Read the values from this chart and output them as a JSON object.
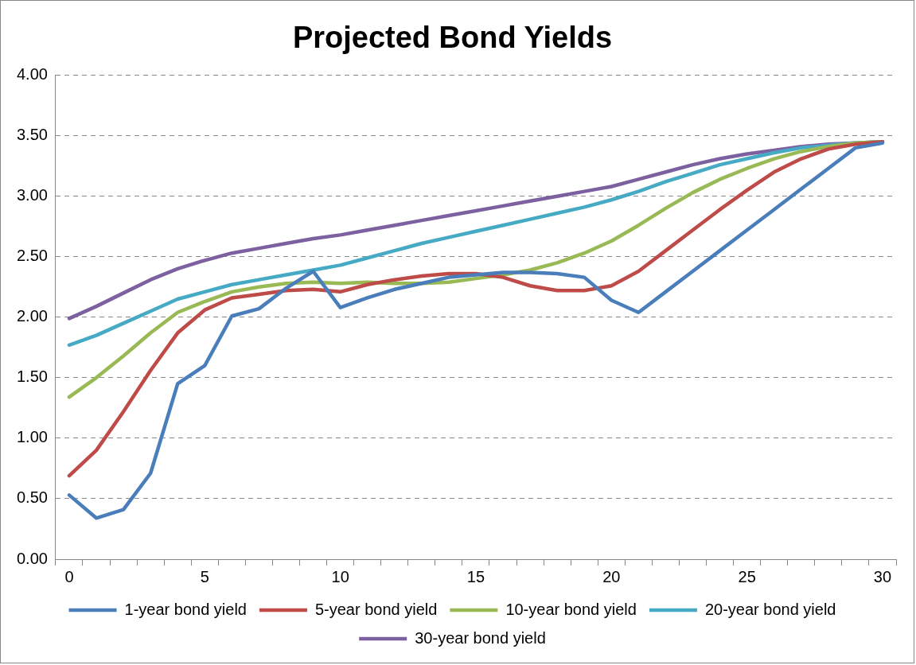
{
  "chart_data": {
    "type": "line",
    "title": "Projected Bond Yields",
    "categories": [
      "0",
      null,
      null,
      null,
      null,
      "5",
      null,
      null,
      null,
      null,
      "10",
      null,
      null,
      null,
      null,
      "15",
      null,
      null,
      null,
      null,
      "20",
      null,
      null,
      null,
      null,
      "25",
      null,
      null,
      null,
      null,
      "30"
    ],
    "series": [
      {
        "name": "1-year bond yield",
        "color": "#4a7ebb",
        "values": [
          0.53,
          0.34,
          0.41,
          0.71,
          1.45,
          1.6,
          2.01,
          2.07,
          2.24,
          2.38,
          2.08,
          2.16,
          2.23,
          2.28,
          2.33,
          2.35,
          2.37,
          2.37,
          2.36,
          2.33,
          2.14,
          2.04,
          2.21,
          2.38,
          2.55,
          2.72,
          2.89,
          3.06,
          3.23,
          3.4,
          3.44
        ]
      },
      {
        "name": "5-year bond yield",
        "color": "#be4b48",
        "values": [
          0.69,
          0.9,
          1.22,
          1.56,
          1.87,
          2.06,
          2.16,
          2.19,
          2.22,
          2.23,
          2.21,
          2.27,
          2.31,
          2.34,
          2.36,
          2.36,
          2.33,
          2.26,
          2.22,
          2.22,
          2.26,
          2.38,
          2.55,
          2.72,
          2.89,
          3.05,
          3.2,
          3.31,
          3.39,
          3.43,
          3.45
        ]
      },
      {
        "name": "10-year bond yield",
        "color": "#98b954",
        "values": [
          1.34,
          1.5,
          1.68,
          1.87,
          2.04,
          2.13,
          2.21,
          2.25,
          2.28,
          2.29,
          2.28,
          2.29,
          2.28,
          2.28,
          2.29,
          2.32,
          2.35,
          2.39,
          2.45,
          2.53,
          2.63,
          2.76,
          2.9,
          3.03,
          3.14,
          3.23,
          3.31,
          3.37,
          3.41,
          3.44,
          3.45
        ]
      },
      {
        "name": "20-year bond yield",
        "color": "#46aac5",
        "values": [
          1.77,
          1.85,
          1.95,
          2.05,
          2.15,
          2.21,
          2.27,
          2.31,
          2.35,
          2.39,
          2.43,
          2.49,
          2.55,
          2.61,
          2.66,
          2.71,
          2.76,
          2.81,
          2.86,
          2.91,
          2.97,
          3.04,
          3.12,
          3.19,
          3.26,
          3.31,
          3.36,
          3.4,
          3.42,
          3.44,
          3.45
        ]
      },
      {
        "name": "30-year bond yield",
        "color": "#7d60a0",
        "values": [
          1.99,
          2.09,
          2.2,
          2.31,
          2.4,
          2.47,
          2.53,
          2.57,
          2.61,
          2.65,
          2.68,
          2.72,
          2.76,
          2.8,
          2.84,
          2.88,
          2.92,
          2.96,
          3.0,
          3.04,
          3.08,
          3.14,
          3.2,
          3.26,
          3.31,
          3.35,
          3.38,
          3.41,
          3.43,
          3.44,
          3.45
        ]
      }
    ],
    "ylim": [
      0,
      4
    ],
    "yticks": [
      {
        "value": 0,
        "label": "0.00"
      },
      {
        "value": 0.5,
        "label": "0.50"
      },
      {
        "value": 1,
        "label": "1.00"
      },
      {
        "value": 1.5,
        "label": "1.50"
      },
      {
        "value": 2,
        "label": "2.00"
      },
      {
        "value": 2.5,
        "label": "2.50"
      },
      {
        "value": 3,
        "label": "3.00"
      },
      {
        "value": 3.5,
        "label": "3.50"
      },
      {
        "value": 4,
        "label": "4.00"
      }
    ],
    "grid": "y",
    "legend": "bottom",
    "marker": "none",
    "line_style": "solid"
  }
}
